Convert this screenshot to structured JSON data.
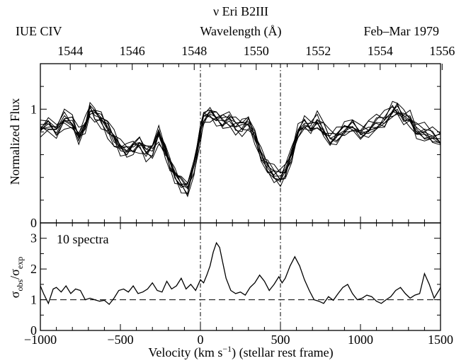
{
  "chart_data": [
    {
      "type": "line",
      "panel": "top",
      "title_lines": [
        "ν Eri   B2III"
      ],
      "top_left_label": "IUE  CIV",
      "top_right_label": "Feb–Mar 1979",
      "x2label": "Wavelength (Å)",
      "x2ticks": [
        "1544",
        "1546",
        "1548",
        "1550",
        "1552",
        "1554",
        "1556"
      ],
      "x2ticks_values": [
        1544,
        1546,
        1548,
        1550,
        1552,
        1554,
        1556
      ],
      "ylabel": "Normalized Flux",
      "yticks": [
        "0",
        "1"
      ],
      "xlim": [
        -1000,
        1500
      ],
      "ylim": [
        0,
        1.4
      ],
      "reference_lines_x": [
        0,
        500
      ],
      "n_spectra": 10,
      "series_mean": {
        "x": [
          -1000,
          -950,
          -900,
          -850,
          -800,
          -760,
          -720,
          -690,
          -660,
          -620,
          -580,
          -540,
          -500,
          -460,
          -420,
          -380,
          -340,
          -300,
          -260,
          -220,
          -190,
          -160,
          -120,
          -80,
          -40,
          0,
          20,
          60,
          100,
          140,
          180,
          220,
          260,
          300,
          340,
          380,
          420,
          460,
          500,
          530,
          570,
          610,
          650,
          690,
          730,
          770,
          810,
          850,
          900,
          950,
          1000,
          1050,
          1100,
          1150,
          1200,
          1230,
          1270,
          1310,
          1350,
          1400,
          1450,
          1500
        ],
        "y": [
          0.83,
          0.87,
          0.82,
          0.92,
          0.88,
          0.76,
          0.86,
          1.0,
          0.96,
          0.92,
          0.84,
          0.74,
          0.66,
          0.64,
          0.67,
          0.7,
          0.63,
          0.65,
          0.78,
          0.63,
          0.52,
          0.43,
          0.35,
          0.31,
          0.5,
          0.8,
          0.92,
          0.96,
          0.93,
          0.9,
          0.91,
          0.86,
          0.85,
          0.88,
          0.76,
          0.6,
          0.5,
          0.43,
          0.4,
          0.46,
          0.6,
          0.8,
          0.88,
          0.85,
          0.9,
          0.82,
          0.74,
          0.76,
          0.82,
          0.86,
          0.8,
          0.83,
          0.87,
          0.9,
          0.99,
          1.0,
          0.93,
          0.92,
          0.82,
          0.79,
          0.76,
          0.73
        ]
      },
      "series_spread": 0.04
    },
    {
      "type": "line",
      "panel": "bottom",
      "annotation": "10 spectra",
      "xlabel": "Velocity (km s⁻¹)  (stellar rest frame)",
      "xlabel_parts": [
        "Velocity (km s",
        "−1",
        ")  (stellar rest frame)"
      ],
      "ylabel_parts": [
        "σ",
        "obs",
        "/σ",
        "exp"
      ],
      "xticks": [
        "−1000",
        "−500",
        "0",
        "500",
        "1000",
        "1500"
      ],
      "xticks_values": [
        -1000,
        -500,
        0,
        500,
        1000,
        1500
      ],
      "yticks": [
        "0",
        "1",
        "2",
        "3"
      ],
      "xlim": [
        -1000,
        1500
      ],
      "ylim": [
        0,
        3.5
      ],
      "reference_line_y": 1,
      "reference_lines_x": [
        0,
        500
      ],
      "series": [
        {
          "x": [
            -1000,
            -980,
            -950,
            -920,
            -900,
            -870,
            -840,
            -810,
            -780,
            -750,
            -720,
            -690,
            -660,
            -630,
            -600,
            -570,
            -540,
            -510,
            -480,
            -450,
            -420,
            -390,
            -360,
            -330,
            -300,
            -270,
            -240,
            -210,
            -180,
            -150,
            -120,
            -90,
            -60,
            -30,
            0,
            20,
            40,
            60,
            80,
            100,
            120,
            140,
            160,
            190,
            220,
            250,
            280,
            310,
            340,
            370,
            400,
            430,
            460,
            490,
            510,
            530,
            560,
            590,
            620,
            650,
            680,
            710,
            740,
            770,
            800,
            830,
            860,
            890,
            920,
            950,
            980,
            1010,
            1040,
            1070,
            1100,
            1130,
            1160,
            1190,
            1220,
            1250,
            1280,
            1310,
            1340,
            1370,
            1400,
            1430,
            1460,
            1490,
            1500
          ],
          "y": [
            1.45,
            1.2,
            0.88,
            1.35,
            1.4,
            1.25,
            1.45,
            1.2,
            1.35,
            1.3,
            1.0,
            1.05,
            1.0,
            0.95,
            0.98,
            0.85,
            1.05,
            1.3,
            1.35,
            1.25,
            1.45,
            1.2,
            1.25,
            1.35,
            1.55,
            1.3,
            1.25,
            1.6,
            1.35,
            1.45,
            1.7,
            1.35,
            1.5,
            1.3,
            1.65,
            1.55,
            1.8,
            2.1,
            2.55,
            2.85,
            2.7,
            2.2,
            1.7,
            1.3,
            1.2,
            1.25,
            1.15,
            1.4,
            1.55,
            1.8,
            1.6,
            1.3,
            1.5,
            1.75,
            1.55,
            1.7,
            2.1,
            2.4,
            2.1,
            1.65,
            1.3,
            1.0,
            0.95,
            0.88,
            1.1,
            0.98,
            1.2,
            1.4,
            1.5,
            1.2,
            1.0,
            1.05,
            1.15,
            1.1,
            0.95,
            0.88,
            1.0,
            1.1,
            1.3,
            1.4,
            1.2,
            1.05,
            1.15,
            1.2,
            1.85,
            1.5,
            1.05,
            1.3,
            1.4
          ]
        }
      ]
    }
  ]
}
